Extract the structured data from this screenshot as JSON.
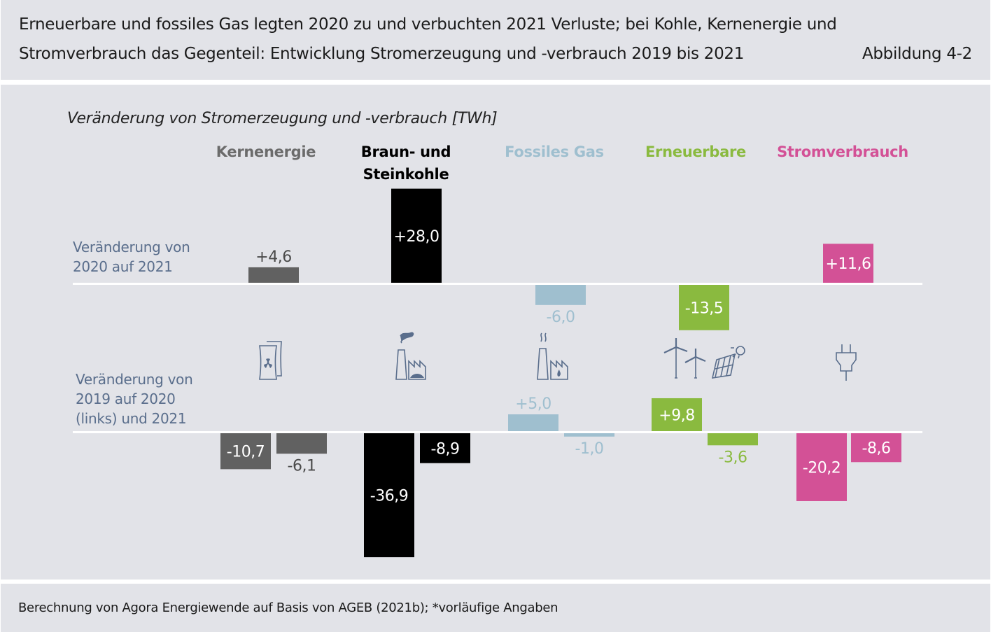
{
  "header": {
    "title_line1": "Erneuerbare und fossiles Gas legten 2020 zu und verbuchten 2021 Verluste; bei Kohle, Kernenergie und",
    "title_line2": "Stromverbrauch das Gegenteil: Entwicklung Stromerzeugung und -verbrauch 2019 bis 2021",
    "figure_number": "Abbildung 4-2"
  },
  "footer": {
    "source": "Berechnung von Agora Energiewende auf Basis von AGEB (2021b); *vorläufige Angaben"
  },
  "chart_data": {
    "type": "bar",
    "title": "Veränderung von Stromerzeugung und -verbrauch [TWh]",
    "unit": "TWh",
    "categories": [
      "Kernenergie",
      "Braun- und Steinkohle",
      "Fossiles Gas",
      "Erneuerbare",
      "Stromverbrauch"
    ],
    "category_labels": [
      [
        "Kernenergie"
      ],
      [
        "Braun- und",
        "Steinkohle"
      ],
      [
        "Fossiles Gas"
      ],
      [
        "Erneuerbare"
      ],
      [
        "Stromverbrauch"
      ]
    ],
    "colors": [
      "#616161",
      "#000000",
      "#9fbfcf",
      "#8aba3f",
      "#d35196"
    ],
    "label_colors_outside": [
      "#4a4a4a",
      "#000000",
      "#9fbfcf",
      "#8aba3f",
      "#d35196"
    ],
    "icons": [
      "nuclear-plant-icon",
      "coal-plant-icon",
      "gas-plant-icon",
      "wind-solar-icon",
      "power-plug-icon"
    ],
    "icon_color": "#5a6e8c",
    "panels": [
      {
        "row_label": [
          "Veränderung von",
          "2020 auf 2021"
        ],
        "series": [
          {
            "name": "2020 auf 2021",
            "values": [
              4.6,
              28.0,
              -6.0,
              -13.5,
              11.6
            ],
            "labels": [
              "+4,6",
              "+28,0",
              "-6,0",
              "-13,5",
              "+11,6"
            ]
          }
        ]
      },
      {
        "row_label": [
          "Veränderung von",
          "2019 auf 2020",
          "(links) und 2021"
        ],
        "series": [
          {
            "name": "2019 auf 2020",
            "values": [
              -10.7,
              -36.9,
              5.0,
              9.8,
              -20.2
            ],
            "labels": [
              "-10,7",
              "-36,9",
              "+5,0",
              "+9,8",
              "-20,2"
            ]
          },
          {
            "name": "2019 auf 2021",
            "values": [
              -6.1,
              -8.9,
              -1.0,
              -3.6,
              -8.6
            ],
            "labels": [
              "-6,1",
              "-8,9",
              "-1,0",
              "-3,6",
              "-8,6"
            ]
          }
        ]
      }
    ]
  }
}
